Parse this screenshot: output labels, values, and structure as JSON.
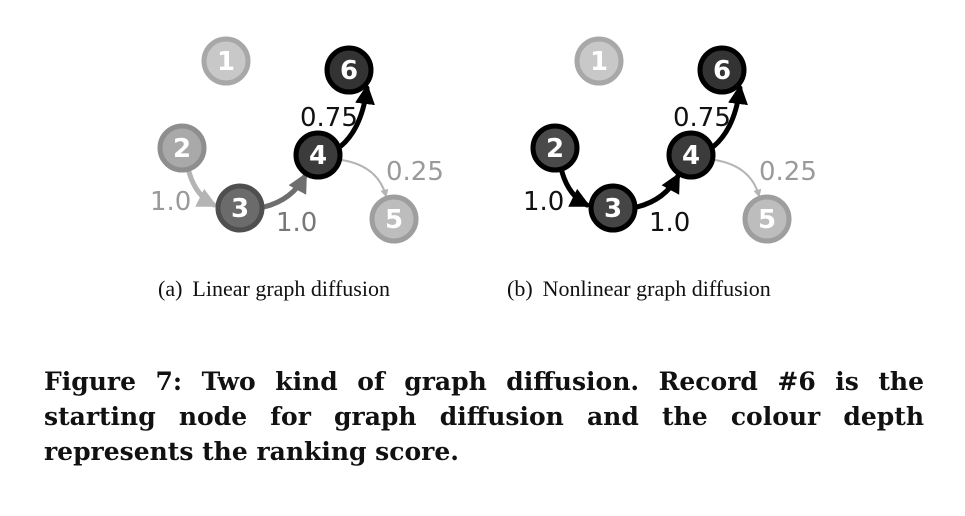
{
  "panels": [
    {
      "tag": "(a)",
      "title": "Linear graph diffusion",
      "nodes": [
        {
          "id": "1",
          "fill": "#c8c8c8",
          "stroke": "#a8a8a8"
        },
        {
          "id": "2",
          "fill": "#a9a9a9",
          "stroke": "#8e8e8e"
        },
        {
          "id": "3",
          "fill": "#6b6b6b",
          "stroke": "#4f4f4f"
        },
        {
          "id": "4",
          "fill": "#3b3b3b",
          "stroke": "#000000"
        },
        {
          "id": "5",
          "fill": "#bdbdbd",
          "stroke": "#9e9e9e"
        },
        {
          "id": "6",
          "fill": "#333333",
          "stroke": "#000000"
        }
      ],
      "edges": [
        {
          "from": "4",
          "to": "6",
          "label": "0.75",
          "color": "#000000",
          "label_color": "#111111"
        },
        {
          "from": "4",
          "to": "5",
          "label": "0.25",
          "color": "#b4b4b4",
          "label_color": "#9a9a9a"
        },
        {
          "from": "3",
          "to": "4",
          "label": "1.0",
          "color": "#6e6e6e",
          "label_color": "#777777"
        },
        {
          "from": "2",
          "to": "3",
          "label": "1.0",
          "color": "#b4b4b4",
          "label_color": "#9a9a9a"
        }
      ]
    },
    {
      "tag": "(b)",
      "title": "Nonlinear graph diffusion",
      "nodes": [
        {
          "id": "1",
          "fill": "#c8c8c8",
          "stroke": "#a8a8a8"
        },
        {
          "id": "2",
          "fill": "#4a4a4a",
          "stroke": "#000000"
        },
        {
          "id": "3",
          "fill": "#454545",
          "stroke": "#000000"
        },
        {
          "id": "4",
          "fill": "#3b3b3b",
          "stroke": "#000000"
        },
        {
          "id": "5",
          "fill": "#bdbdbd",
          "stroke": "#9e9e9e"
        },
        {
          "id": "6",
          "fill": "#333333",
          "stroke": "#000000"
        }
      ],
      "edges": [
        {
          "from": "4",
          "to": "6",
          "label": "0.75",
          "color": "#000000",
          "label_color": "#111111"
        },
        {
          "from": "4",
          "to": "5",
          "label": "0.25",
          "color": "#b4b4b4",
          "label_color": "#9a9a9a"
        },
        {
          "from": "3",
          "to": "4",
          "label": "1.0",
          "color": "#000000",
          "label_color": "#111111"
        },
        {
          "from": "2",
          "to": "3",
          "label": "1.0",
          "color": "#000000",
          "label_color": "#111111"
        }
      ]
    }
  ],
  "caption": "Figure 7: Two kind of graph diffusion. Record #6 is the starting node for graph diffusion and the colour depth represents the ranking score."
}
